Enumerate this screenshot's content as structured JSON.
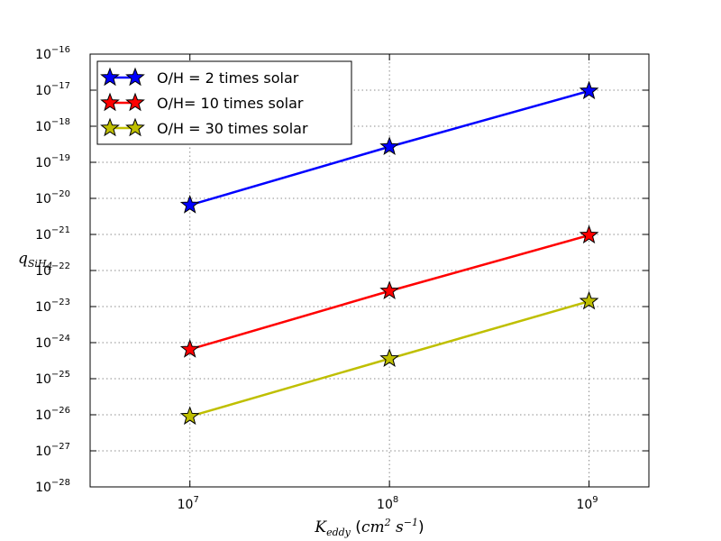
{
  "chart_data": {
    "type": "line",
    "x": [
      10000000,
      100000000,
      1000000000
    ],
    "xscale": "log",
    "yscale": "log",
    "xlim_exp": [
      6.5,
      9.3
    ],
    "ylim_exp": [
      -28,
      -16
    ],
    "grid": true,
    "legend_position": "top-left",
    "xlabel": {
      "main": "K",
      "sub": "eddy",
      "unit_open": " (",
      "unit_a": "cm",
      "unit_a_sup": "2",
      "unit_b": " s",
      "unit_b_sup": "−1",
      "unit_close": ")"
    },
    "ylabel": {
      "main": "q",
      "sub": "SiH",
      "sub2": "4"
    },
    "x_ticks": [
      {
        "base": "10",
        "exp": "7"
      },
      {
        "base": "10",
        "exp": "8"
      },
      {
        "base": "10",
        "exp": "9"
      }
    ],
    "y_ticks": [
      {
        "base": "10",
        "exp": "−16"
      },
      {
        "base": "10",
        "exp": "−17"
      },
      {
        "base": "10",
        "exp": "−18"
      },
      {
        "base": "10",
        "exp": "−19"
      },
      {
        "base": "10",
        "exp": "−20"
      },
      {
        "base": "10",
        "exp": "−21"
      },
      {
        "base": "10",
        "exp": "−22"
      },
      {
        "base": "10",
        "exp": "−23"
      },
      {
        "base": "10",
        "exp": "−24"
      },
      {
        "base": "10",
        "exp": "−25"
      },
      {
        "base": "10",
        "exp": "−26"
      },
      {
        "base": "10",
        "exp": "−27"
      },
      {
        "base": "10",
        "exp": "−28"
      }
    ],
    "series": [
      {
        "name": "O/H = 2 times solar",
        "color": "#0000ff",
        "values": [
          6.5e-21,
          2.7e-19,
          9.5e-18
        ]
      },
      {
        "name": "O/H= 10 times solar",
        "color": "#ff0000",
        "values": [
          6.5e-25,
          2.7e-23,
          9.5e-22
        ]
      },
      {
        "name": "O/H = 30 times solar",
        "color": "#bfbf00",
        "values": [
          9e-27,
          3.6e-25,
          1.4e-23
        ]
      }
    ]
  }
}
